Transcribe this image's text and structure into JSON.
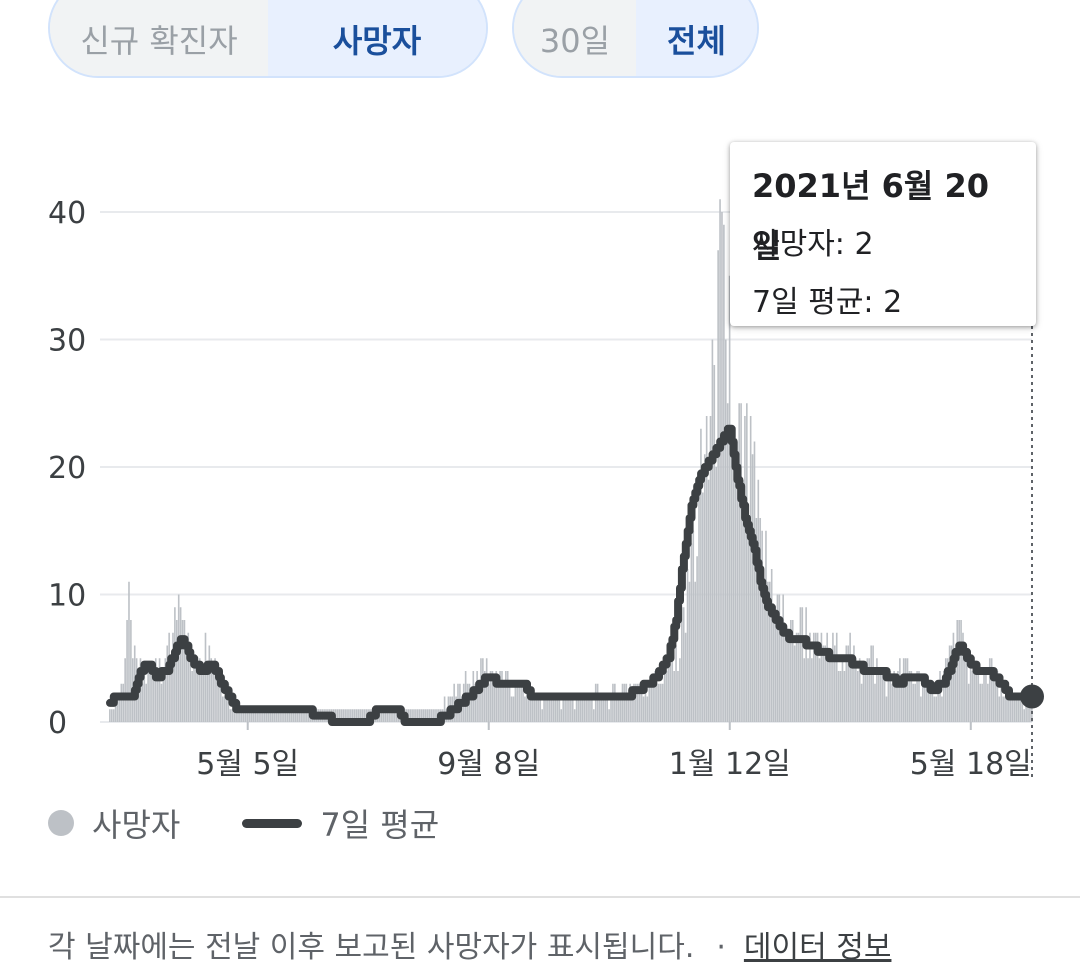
{
  "toggles": {
    "metric": {
      "options": [
        "신규 확진자",
        "사망자"
      ],
      "selected": "사망자"
    },
    "range": {
      "options": [
        "30일",
        "전체"
      ],
      "selected": "전체"
    }
  },
  "tooltip": {
    "date": "2021년 6월 20일",
    "deaths": "사망자: 2",
    "avg": "7일 평균: 2"
  },
  "legend": {
    "deaths": "사망자",
    "avg": "7일 평균"
  },
  "footer": {
    "note": "각 날짜에는 전날 이후 보고된 사망자가 표시됩니다.",
    "separator": "·",
    "link": "데이터 정보"
  },
  "colors": {
    "bars": "#bdc1c6",
    "line": "#3c4043",
    "grid": "#e8eaed",
    "accent": "#1a4f9c"
  },
  "chart_data": {
    "type": "bar",
    "title": "",
    "xlabel": "",
    "ylabel": "",
    "ylim": [
      0,
      40
    ],
    "yticks": [
      0,
      10,
      20,
      30,
      40
    ],
    "xticks": [
      {
        "label": "5월 5일",
        "day": 72
      },
      {
        "label": "9월 8일",
        "day": 198
      },
      {
        "label": "1월 12일",
        "day": 324
      },
      {
        "label": "5월 18일",
        "day": 450
      }
    ],
    "n_days": 483,
    "grid": true,
    "legend_position": "bottom-left",
    "selected_day": 482,
    "series": [
      {
        "name": "사망자",
        "type": "bar",
        "keypoints": [
          [
            0,
            1
          ],
          [
            6,
            3
          ],
          [
            10,
            11
          ],
          [
            12,
            5
          ],
          [
            18,
            4
          ],
          [
            24,
            5
          ],
          [
            30,
            6
          ],
          [
            34,
            9
          ],
          [
            38,
            8
          ],
          [
            44,
            5
          ],
          [
            50,
            7
          ],
          [
            56,
            4
          ],
          [
            62,
            3
          ],
          [
            66,
            1
          ],
          [
            100,
            1
          ],
          [
            150,
            1
          ],
          [
            170,
            1
          ],
          [
            185,
            3
          ],
          [
            194,
            5
          ],
          [
            205,
            4
          ],
          [
            215,
            3
          ],
          [
            222,
            2
          ],
          [
            250,
            2
          ],
          [
            270,
            3
          ],
          [
            290,
            4
          ],
          [
            296,
            6
          ],
          [
            300,
            9
          ],
          [
            304,
            14
          ],
          [
            308,
            19
          ],
          [
            312,
            24
          ],
          [
            316,
            28
          ],
          [
            320,
            40
          ],
          [
            322,
            30
          ],
          [
            324,
            35
          ],
          [
            326,
            22
          ],
          [
            330,
            25
          ],
          [
            336,
            21
          ],
          [
            340,
            16
          ],
          [
            346,
            12
          ],
          [
            352,
            10
          ],
          [
            356,
            8
          ],
          [
            362,
            9
          ],
          [
            368,
            7
          ],
          [
            374,
            6
          ],
          [
            380,
            7
          ],
          [
            386,
            6
          ],
          [
            392,
            5
          ],
          [
            398,
            6
          ],
          [
            404,
            4
          ],
          [
            410,
            4
          ],
          [
            416,
            5
          ],
          [
            422,
            4
          ],
          [
            428,
            3
          ],
          [
            434,
            4
          ],
          [
            440,
            6
          ],
          [
            444,
            8
          ],
          [
            448,
            5
          ],
          [
            454,
            4
          ],
          [
            460,
            5
          ],
          [
            466,
            3
          ],
          [
            472,
            2
          ],
          [
            482,
            2
          ]
        ]
      },
      {
        "name": "7일 평균",
        "type": "line",
        "keypoints": [
          [
            0,
            1.5
          ],
          [
            4,
            2
          ],
          [
            12,
            2
          ],
          [
            16,
            4
          ],
          [
            20,
            4.5
          ],
          [
            24,
            3.5
          ],
          [
            30,
            4
          ],
          [
            34,
            5.5
          ],
          [
            38,
            6.5
          ],
          [
            42,
            5
          ],
          [
            48,
            4
          ],
          [
            54,
            4.5
          ],
          [
            60,
            2.5
          ],
          [
            66,
            1
          ],
          [
            100,
            1
          ],
          [
            110,
            0.5
          ],
          [
            120,
            0
          ],
          [
            134,
            0
          ],
          [
            140,
            1
          ],
          [
            150,
            1
          ],
          [
            154,
            0
          ],
          [
            170,
            0
          ],
          [
            180,
            1
          ],
          [
            188,
            2
          ],
          [
            194,
            3
          ],
          [
            198,
            3.5
          ],
          [
            204,
            3
          ],
          [
            216,
            3
          ],
          [
            220,
            2
          ],
          [
            250,
            2
          ],
          [
            270,
            2
          ],
          [
            276,
            2.5
          ],
          [
            286,
            3.5
          ],
          [
            292,
            5
          ],
          [
            296,
            8
          ],
          [
            300,
            13
          ],
          [
            304,
            17
          ],
          [
            308,
            19
          ],
          [
            312,
            20
          ],
          [
            316,
            21
          ],
          [
            320,
            22
          ],
          [
            324,
            23
          ],
          [
            328,
            19
          ],
          [
            332,
            16
          ],
          [
            336,
            14
          ],
          [
            340,
            11
          ],
          [
            344,
            9
          ],
          [
            348,
            8
          ],
          [
            352,
            7
          ],
          [
            356,
            6.5
          ],
          [
            360,
            6.5
          ],
          [
            366,
            6
          ],
          [
            372,
            5.5
          ],
          [
            378,
            5
          ],
          [
            384,
            5
          ],
          [
            390,
            4.5
          ],
          [
            396,
            4
          ],
          [
            402,
            4
          ],
          [
            408,
            3.5
          ],
          [
            412,
            3
          ],
          [
            418,
            3.5
          ],
          [
            424,
            3.5
          ],
          [
            430,
            2.5
          ],
          [
            436,
            3
          ],
          [
            440,
            4.5
          ],
          [
            444,
            6
          ],
          [
            448,
            5
          ],
          [
            454,
            4
          ],
          [
            460,
            4
          ],
          [
            466,
            3
          ],
          [
            470,
            2
          ],
          [
            482,
            2
          ]
        ]
      }
    ]
  }
}
